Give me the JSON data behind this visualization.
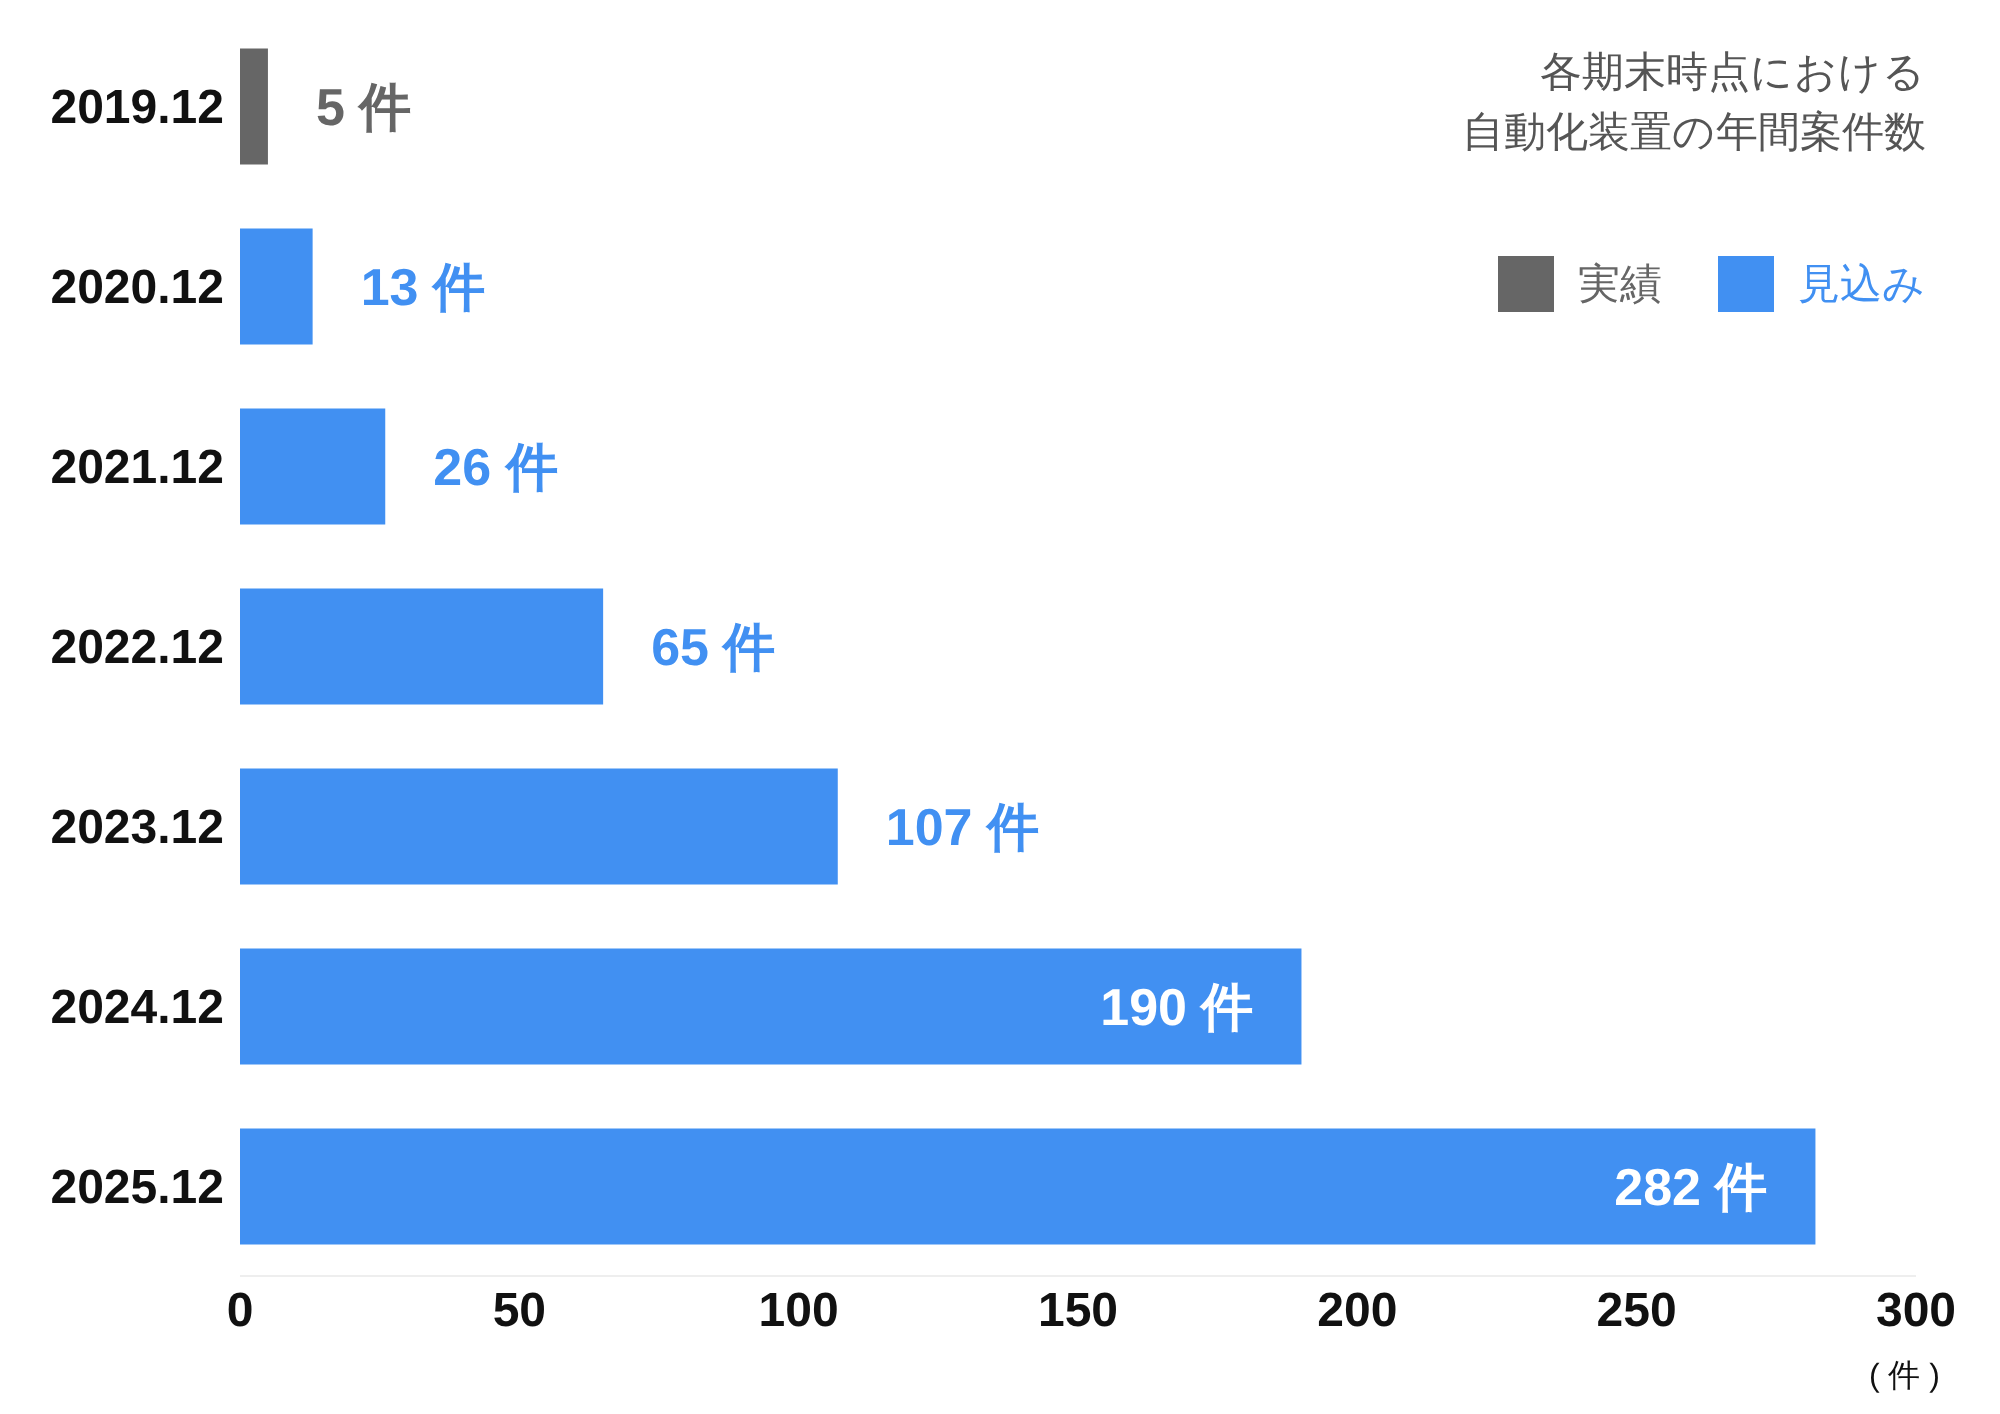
{
  "chart_data": {
    "type": "bar",
    "orientation": "horizontal",
    "stacked": true,
    "categories": [
      "2019.12",
      "2020.12",
      "2021.12",
      "2022.12",
      "2023.12",
      "2024.12",
      "2025.12"
    ],
    "series": [
      {
        "name": "実績",
        "color": "#666666",
        "values": [
          5,
          null,
          null,
          null,
          null,
          null,
          null
        ],
        "value_labels": [
          "5 件",
          null,
          null,
          null,
          null,
          null,
          null
        ]
      },
      {
        "name": "見込み",
        "color": "#4190f2",
        "values": [
          null,
          13,
          26,
          65,
          107,
          190,
          282
        ],
        "value_labels": [
          null,
          "13 件",
          "26 件",
          "65 件",
          "107 件",
          "190 件",
          "282 件"
        ]
      }
    ],
    "xlim": [
      0,
      300
    ],
    "xticks": [
      0,
      50,
      100,
      150,
      200,
      250,
      300
    ],
    "xlabel": "( 件 )",
    "legend": "top right",
    "grid": false,
    "annotations": [
      "各期末時点における自動化装置の年間案件数"
    ]
  }
}
